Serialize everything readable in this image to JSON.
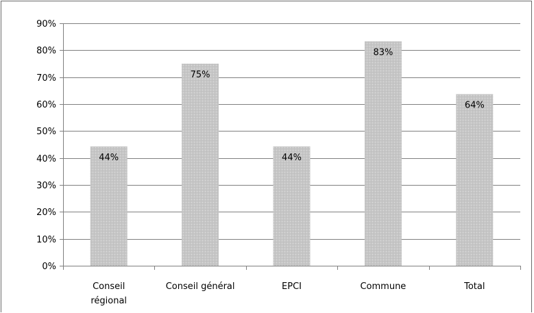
{
  "chart_data": {
    "type": "bar",
    "title": "",
    "xlabel": "",
    "ylabel": "",
    "categories": [
      [
        "Conseil",
        "régional"
      ],
      [
        "Conseil général"
      ],
      [
        "EPCI"
      ],
      [
        "Commune"
      ],
      [
        "Total"
      ]
    ],
    "values": [
      44.3,
      75,
      44.3,
      83.3,
      63.7
    ],
    "data_labels": [
      "44%",
      "75%",
      "44%",
      "83%",
      "64%"
    ],
    "ylim": [
      0,
      90
    ],
    "yticks": [
      0,
      10,
      20,
      30,
      40,
      50,
      60,
      70,
      80,
      90
    ],
    "ytick_labels": [
      "0%",
      "10%",
      "20%",
      "30%",
      "40%",
      "50%",
      "60%",
      "70%",
      "80%",
      "90%"
    ],
    "grid": true,
    "legend": "none",
    "bar_color": "#c8c8c8",
    "grid_color": "#7f7f7f",
    "axis_color": "#7f7f7f"
  }
}
